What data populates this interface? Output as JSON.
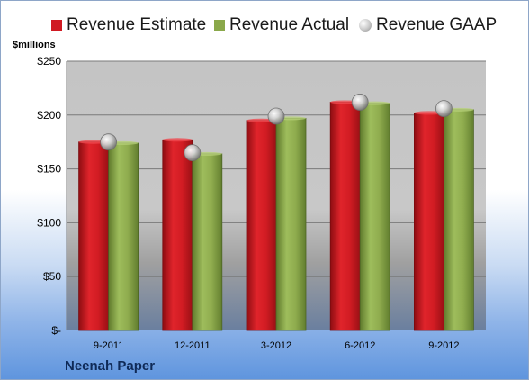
{
  "chart_data": {
    "type": "bar",
    "title": "",
    "ylabel": "$millions",
    "xlabel": "",
    "categories": [
      "9-2011",
      "12-2011",
      "3-2012",
      "6-2012",
      "9-2012"
    ],
    "y_ticks": [
      "$-",
      "$50",
      "$100",
      "$150",
      "$200",
      "$250"
    ],
    "ylim": [
      0,
      250
    ],
    "grid": true,
    "legend_position": "top",
    "series": [
      {
        "name": "Revenue Estimate",
        "kind": "bar",
        "color": "#c8141c",
        "values": [
          175,
          177,
          195,
          212,
          202
        ]
      },
      {
        "name": "Revenue Actual",
        "kind": "bar",
        "color": "#8aa84a",
        "values": [
          174,
          164,
          197,
          211,
          205
        ]
      },
      {
        "name": "Revenue GAAP",
        "kind": "marker",
        "color": "#b8b8b8",
        "values": [
          175,
          165,
          199,
          212,
          206
        ]
      }
    ],
    "footer": "Neenah Paper"
  }
}
